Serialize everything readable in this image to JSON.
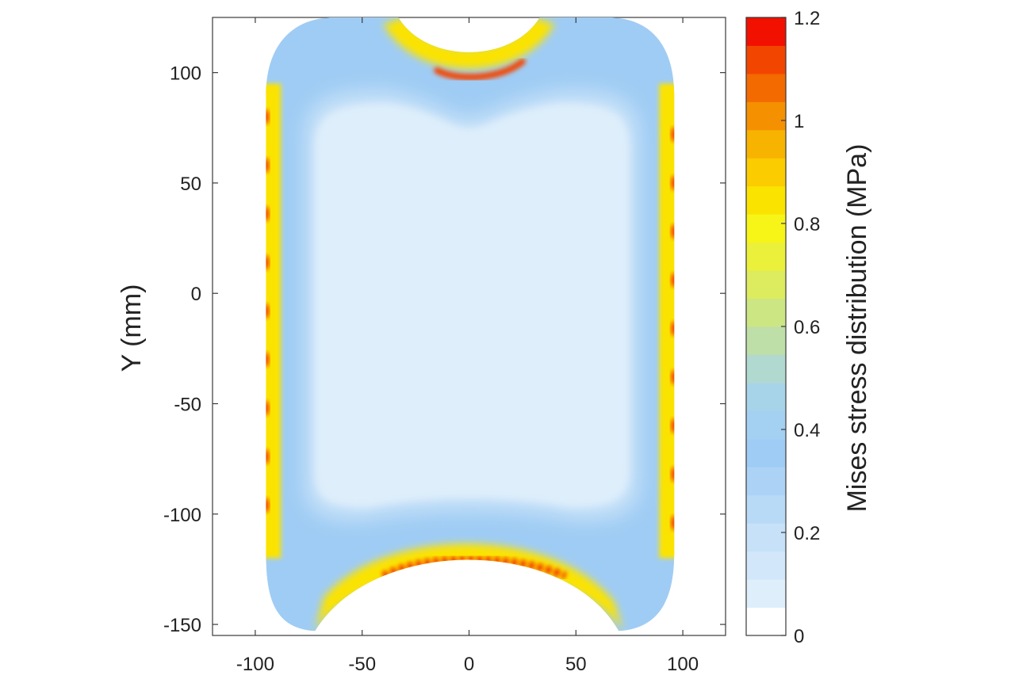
{
  "chart_data": {
    "type": "heatmap",
    "title": "",
    "xlabel": "",
    "ylabel": "Y (mm)",
    "xlim": [
      -120,
      120
    ],
    "ylim": [
      -155,
      125
    ],
    "x_ticks": [
      -100,
      -50,
      0,
      50,
      100
    ],
    "x_tick_labels": [
      "-100",
      "-50",
      "0",
      "50",
      "100"
    ],
    "y_ticks": [
      -150,
      -100,
      -50,
      0,
      50,
      100
    ],
    "y_tick_labels": [
      "-150",
      "-100",
      "-50",
      "0",
      "50",
      "100"
    ],
    "grid": false,
    "colorbar": {
      "label": "Mises stress distribution (MPa)",
      "range": [
        0,
        1.2
      ],
      "ticks": [
        0,
        0.2,
        0.4,
        0.6,
        0.8,
        1,
        1.2
      ],
      "tick_labels": [
        "0",
        "0.2",
        "0.4",
        "0.6",
        "0.8",
        "1",
        "1.2"
      ],
      "levels": 22,
      "colors": [
        "#ffffff",
        "#deeefb",
        "#d2e8fa",
        "#c6e1f8",
        "#b9daf7",
        "#acd3f6",
        "#9fccf4",
        "#a4d0f2",
        "#a8d4ea",
        "#b1d9d0",
        "#bedfa8",
        "#cde684",
        "#dcec5e",
        "#ebf13a",
        "#f7f518",
        "#fbe300",
        "#fbcc00",
        "#f8b200",
        "#f59000",
        "#f36a00",
        "#f24500",
        "#f21000"
      ]
    },
    "field": {
      "description_regions": [
        {
          "region": "interior",
          "stress_mpa": 0.1
        },
        {
          "region": "outer band",
          "stress_mpa": 0.35
        },
        {
          "region": "left and right edges",
          "stress_mpa": 0.85,
          "peak_mpa": 1.15
        },
        {
          "region": "top notch",
          "stress_mpa": 0.9,
          "peak_mpa": 1.1
        },
        {
          "region": "bottom arc",
          "stress_mpa": 0.9,
          "peak_mpa": 1.2
        }
      ]
    }
  }
}
